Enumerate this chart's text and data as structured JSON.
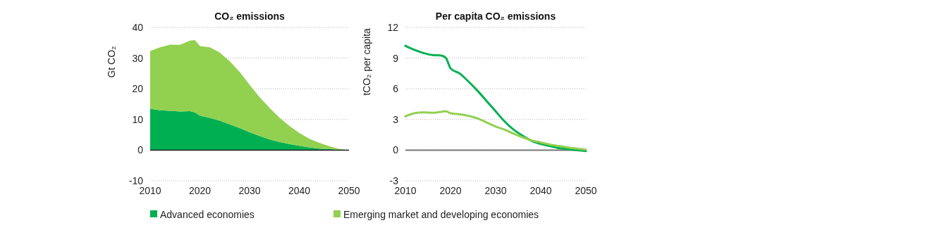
{
  "chart_data": [
    {
      "type": "area",
      "title": "CO₂ emissions",
      "ylabel": "Gt CO₂",
      "stacked": true,
      "x": [
        2010,
        2012,
        2014,
        2016,
        2018,
        2019,
        2020,
        2022,
        2024,
        2026,
        2028,
        2030,
        2032,
        2034,
        2036,
        2038,
        2040,
        2042,
        2044,
        2046,
        2048,
        2050
      ],
      "series": [
        {
          "name": "Advanced economies",
          "color": "#00b050",
          "values": [
            13.5,
            13.0,
            12.8,
            12.6,
            12.7,
            12.3,
            11.2,
            10.5,
            9.6,
            8.4,
            7.2,
            5.8,
            4.6,
            3.5,
            2.7,
            2.0,
            1.4,
            0.9,
            0.5,
            0.3,
            0.1,
            0
          ]
        },
        {
          "name": "Emerging market and developing economies",
          "color": "#92d050",
          "values": [
            18.8,
            20.5,
            21.6,
            21.7,
            23.0,
            23.6,
            22.7,
            23.0,
            22.2,
            20.6,
            18.3,
            15.5,
            12.7,
            10.3,
            7.9,
            5.9,
            4.2,
            2.8,
            1.9,
            1.0,
            0.3,
            0
          ]
        }
      ],
      "xlim": [
        2010,
        2050
      ],
      "xticks": [
        2010,
        2020,
        2030,
        2040,
        2050
      ],
      "ylim": [
        -10,
        40
      ],
      "yticks": [
        -10,
        0,
        10,
        20,
        30,
        40
      ],
      "grid": "y",
      "legend": "bottom"
    },
    {
      "type": "line",
      "title": "Per capita CO₂ emissions",
      "ylabel": "tCO₂ per capita",
      "x": [
        2010,
        2012,
        2014,
        2016,
        2018,
        2019,
        2020,
        2022,
        2024,
        2026,
        2028,
        2030,
        2032,
        2034,
        2036,
        2038,
        2040,
        2042,
        2044,
        2046,
        2048,
        2050
      ],
      "series": [
        {
          "color": "#00b050",
          "values": [
            10.2,
            9.8,
            9.5,
            9.3,
            9.25,
            9.0,
            8.0,
            7.5,
            6.7,
            5.8,
            4.8,
            3.8,
            2.8,
            2.0,
            1.4,
            0.9,
            0.6,
            0.4,
            0.2,
            0.1,
            0.0,
            -0.1
          ]
        },
        {
          "color": "#92d050",
          "values": [
            3.3,
            3.6,
            3.7,
            3.65,
            3.75,
            3.8,
            3.6,
            3.5,
            3.35,
            3.1,
            2.7,
            2.3,
            2.0,
            1.6,
            1.25,
            0.95,
            0.75,
            0.55,
            0.4,
            0.25,
            0.15,
            0.05
          ]
        }
      ],
      "xlim": [
        2010,
        2050
      ],
      "xticks": [
        2010,
        2020,
        2030,
        2040,
        2050
      ],
      "ylim": [
        -3,
        12
      ],
      "yticks": [
        -3,
        0,
        3,
        6,
        9,
        12
      ],
      "grid": "y"
    }
  ]
}
